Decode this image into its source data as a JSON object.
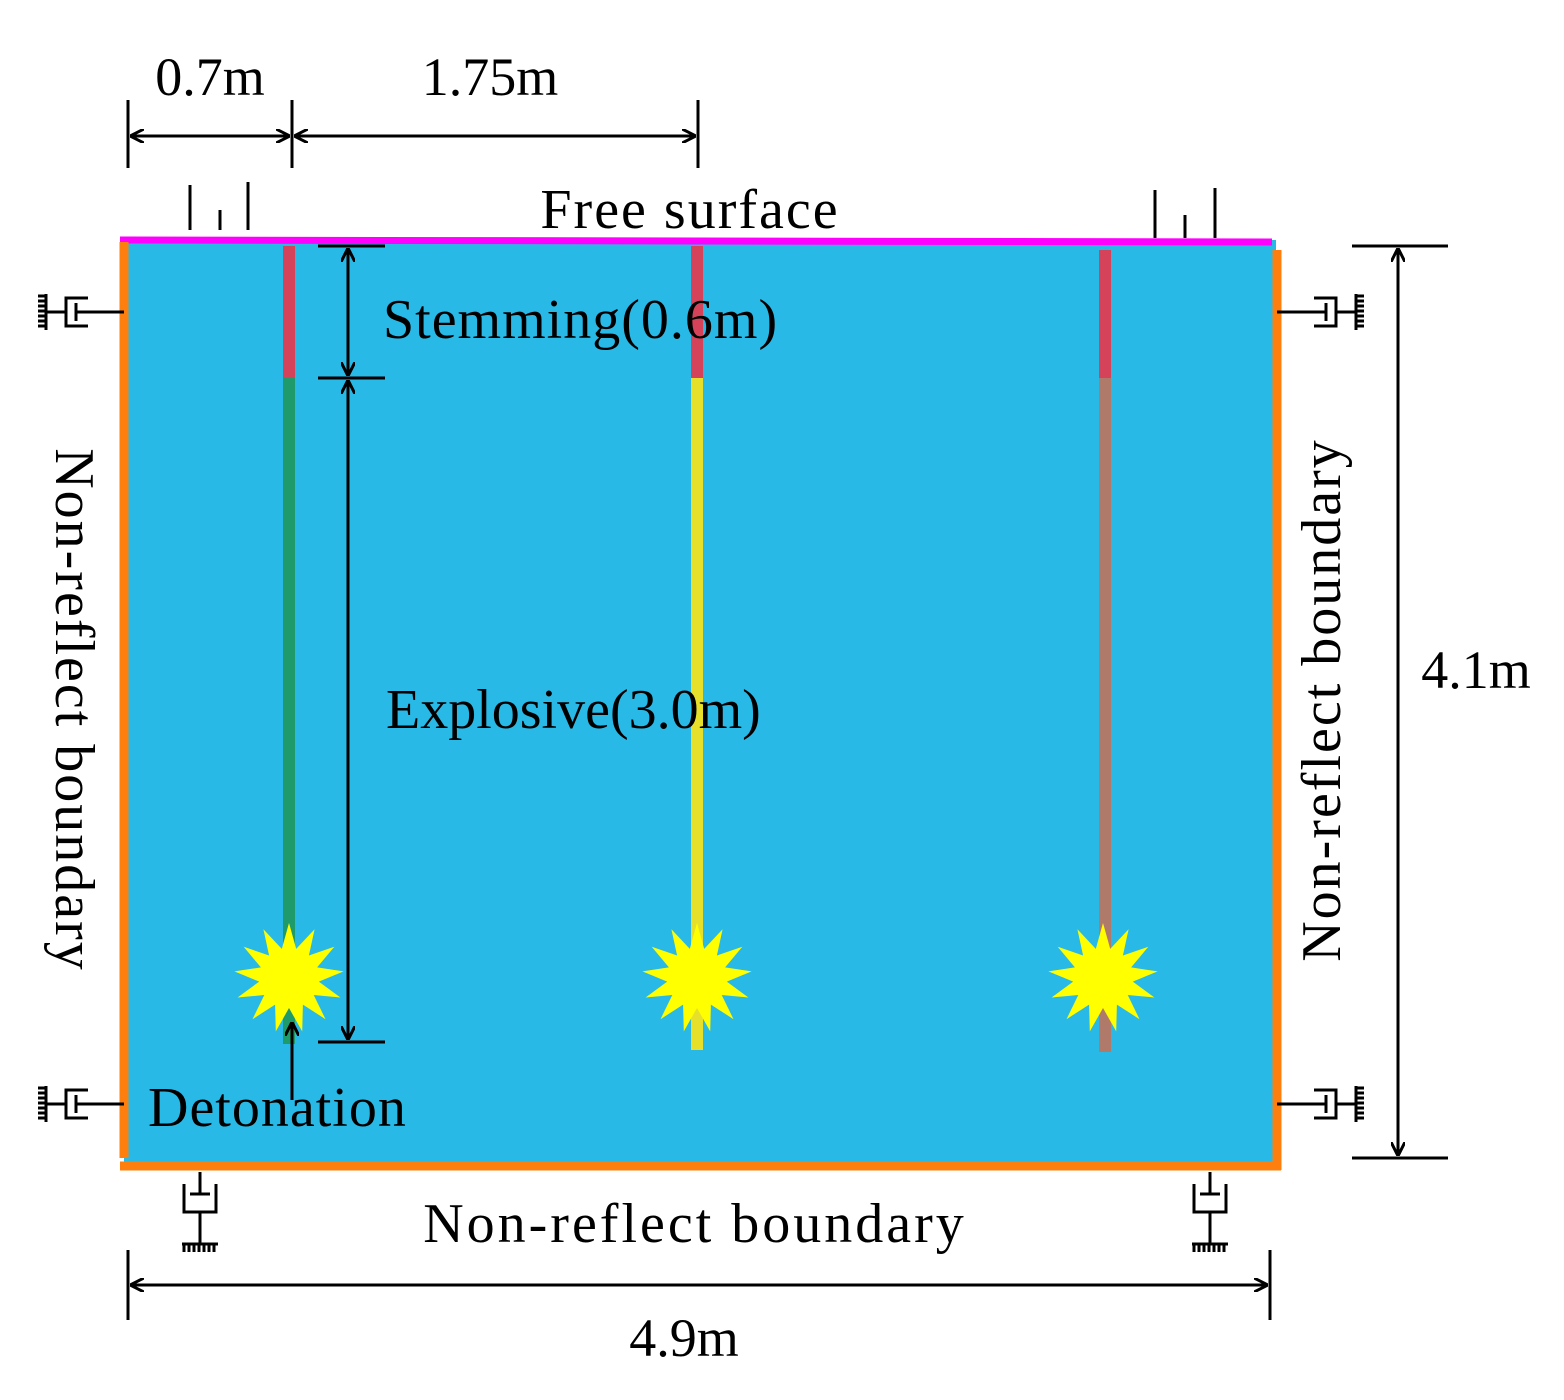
{
  "labels": {
    "dim_top_left": "0.7m",
    "dim_top_mid": "1.75m",
    "top_boundary": "Free surface",
    "stemming": "Stemming(0.6m)",
    "explosive": "Explosive(3.0m)",
    "detonation": "Detonation",
    "left_boundary": "Non-reflect boundary",
    "right_boundary": "Non-reflect boundary",
    "bottom_boundary": "Non-reflect boundary",
    "dim_height": "4.1m",
    "dim_width": "4.9m"
  },
  "colors": {
    "rock": "#29b9e6",
    "free_surface": "#ff00ff",
    "boundary": "#ff7f0e",
    "stemming": "#d4435a",
    "explosive_hole1": "#1f9a6a",
    "explosive_hole2": "#e6e02a",
    "explosive_hole3": "#b07a6a",
    "detonation_star": "#ffff00"
  }
}
